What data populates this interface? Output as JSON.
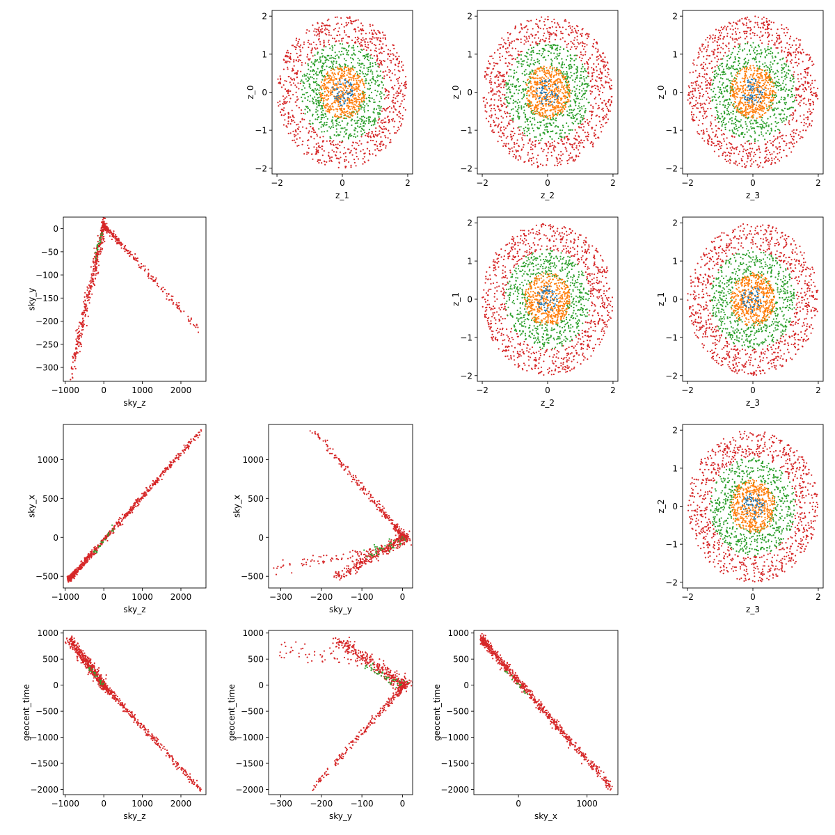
{
  "colors": {
    "blue": "#1f77b4",
    "orange": "#ff7f0e",
    "green": "#2ca02c",
    "red": "#d62728"
  },
  "chart_data": [
    {
      "type": "scatter",
      "kind": "disk",
      "title": "",
      "xlabel": "z_1",
      "ylabel": "z_0",
      "xlim": [
        -2.15,
        2.15
      ],
      "ylim": [
        -2.15,
        2.15
      ],
      "xticks": [
        -2,
        0,
        2
      ],
      "yticks": [
        -2,
        -1,
        0,
        1,
        2
      ],
      "seed": 11,
      "series": [
        {
          "name": "red",
          "radius": [
            1.3,
            2.0
          ],
          "count": 850
        },
        {
          "name": "green",
          "radius": [
            0.6,
            1.3
          ],
          "count": 600
        },
        {
          "name": "orange",
          "radius": [
            0,
            0.7
          ],
          "count": 500
        },
        {
          "name": "blue",
          "radius": [
            0,
            0.35
          ],
          "count": 60
        }
      ]
    },
    {
      "type": "scatter",
      "kind": "disk",
      "title": "",
      "xlabel": "z_2",
      "ylabel": "z_0",
      "xlim": [
        -2.15,
        2.15
      ],
      "ylim": [
        -2.15,
        2.15
      ],
      "xticks": [
        -2,
        0,
        2
      ],
      "yticks": [
        -2,
        -1,
        0,
        1,
        2
      ],
      "seed": 23,
      "series": [
        {
          "name": "red",
          "radius": [
            1.3,
            2.0
          ],
          "count": 850
        },
        {
          "name": "green",
          "radius": [
            0.6,
            1.3
          ],
          "count": 600
        },
        {
          "name": "orange",
          "radius": [
            0,
            0.7
          ],
          "count": 500
        },
        {
          "name": "blue",
          "radius": [
            0,
            0.35
          ],
          "count": 60
        }
      ]
    },
    {
      "type": "scatter",
      "kind": "disk",
      "title": "",
      "xlabel": "z_3",
      "ylabel": "z_0",
      "xlim": [
        -2.15,
        2.15
      ],
      "ylim": [
        -2.15,
        2.15
      ],
      "xticks": [
        -2,
        0,
        2
      ],
      "yticks": [
        -2,
        -1,
        0,
        1,
        2
      ],
      "seed": 37,
      "series": [
        {
          "name": "red",
          "radius": [
            1.3,
            2.0
          ],
          "count": 850
        },
        {
          "name": "green",
          "radius": [
            0.6,
            1.3
          ],
          "count": 600
        },
        {
          "name": "orange",
          "radius": [
            0,
            0.7
          ],
          "count": 500
        },
        {
          "name": "blue",
          "radius": [
            0,
            0.35
          ],
          "count": 60
        }
      ]
    },
    {
      "type": "scatter",
      "kind": "lines",
      "title": "",
      "xlabel": "sky_z",
      "ylabel": "sky_y",
      "xlim": [
        -1050,
        2650
      ],
      "ylim": [
        -330,
        25
      ],
      "xticks": [
        -1000,
        0,
        1000,
        2000
      ],
      "yticks": [
        -300,
        -250,
        -200,
        -150,
        -100,
        -50,
        0
      ],
      "seed": 41,
      "series": [
        {
          "name": "red",
          "segments": [
            {
              "from": [
                0,
                8
              ],
              "to": [
                2500,
                -222
              ],
              "count": 260,
              "jx": 18,
              "jy": 4,
              "pw": 2.6
            },
            {
              "from": [
                0,
                8
              ],
              "to": [
                -850,
                -318
              ],
              "count": 380,
              "jx": 22,
              "jy": 14,
              "pw": 1.4
            }
          ]
        },
        {
          "name": "green",
          "segments": [
            {
              "from": [
                0,
                5
              ],
              "to": [
                -250,
                -70
              ],
              "count": 20,
              "jx": 10,
              "jy": 6,
              "pw": 1.0
            }
          ]
        }
      ]
    },
    {
      "type": "scatter",
      "kind": "disk",
      "title": "",
      "xlabel": "z_2",
      "ylabel": "z_1",
      "xlim": [
        -2.15,
        2.15
      ],
      "ylim": [
        -2.15,
        2.15
      ],
      "xticks": [
        -2,
        0,
        2
      ],
      "yticks": [
        -2,
        -1,
        0,
        1,
        2
      ],
      "seed": 53,
      "series": [
        {
          "name": "red",
          "radius": [
            1.3,
            2.0
          ],
          "count": 850
        },
        {
          "name": "green",
          "radius": [
            0.6,
            1.3
          ],
          "count": 600
        },
        {
          "name": "orange",
          "radius": [
            0,
            0.7
          ],
          "count": 500
        },
        {
          "name": "blue",
          "radius": [
            0,
            0.35
          ],
          "count": 60
        }
      ]
    },
    {
      "type": "scatter",
      "kind": "disk",
      "title": "",
      "xlabel": "z_3",
      "ylabel": "z_1",
      "xlim": [
        -2.15,
        2.15
      ],
      "ylim": [
        -2.15,
        2.15
      ],
      "xticks": [
        -2,
        0,
        2
      ],
      "yticks": [
        -2,
        -1,
        0,
        1,
        2
      ],
      "seed": 67,
      "series": [
        {
          "name": "red",
          "radius": [
            1.3,
            2.0
          ],
          "count": 850
        },
        {
          "name": "green",
          "radius": [
            0.6,
            1.3
          ],
          "count": 600
        },
        {
          "name": "orange",
          "radius": [
            0,
            0.7
          ],
          "count": 500
        },
        {
          "name": "blue",
          "radius": [
            0,
            0.35
          ],
          "count": 60
        }
      ]
    },
    {
      "type": "scatter",
      "kind": "lines",
      "title": "",
      "xlabel": "sky_z",
      "ylabel": "sky_x",
      "xlim": [
        -1050,
        2650
      ],
      "ylim": [
        -650,
        1450
      ],
      "xticks": [
        -1000,
        0,
        1000,
        2000
      ],
      "yticks": [
        -500,
        0,
        500,
        1000
      ],
      "seed": 71,
      "series": [
        {
          "name": "red",
          "segments": [
            {
              "from": [
                -900,
                -540
              ],
              "to": [
                2500,
                1360
              ],
              "count": 700,
              "jx": 25,
              "jy": 18,
              "pw": 2.0
            }
          ]
        },
        {
          "name": "green",
          "segments": [
            {
              "from": [
                -300,
                -230
              ],
              "to": [
                300,
                150
              ],
              "count": 20,
              "jx": 15,
              "jy": 15,
              "pw": 1.0
            }
          ]
        }
      ]
    },
    {
      "type": "scatter",
      "kind": "lines",
      "title": "",
      "xlabel": "sky_y",
      "ylabel": "sky_x",
      "xlim": [
        -330,
        25
      ],
      "ylim": [
        -650,
        1450
      ],
      "xticks": [
        -300,
        -200,
        -100,
        0
      ],
      "yticks": [
        -500,
        0,
        500,
        1000
      ],
      "seed": 83,
      "series": [
        {
          "name": "red",
          "segments": [
            {
              "from": [
                5,
                0
              ],
              "to": [
                -220,
                1380
              ],
              "count": 300,
              "jx": 4,
              "jy": 18,
              "pw": 2.5
            },
            {
              "from": [
                5,
                0
              ],
              "to": [
                -160,
                -510
              ],
              "count": 320,
              "jx": 10,
              "jy": 30,
              "pw": 1.5
            },
            {
              "from": [
                -40,
                -150
              ],
              "to": [
                -310,
                -400
              ],
              "count": 70,
              "jx": 8,
              "jy": 40,
              "pw": 1.0
            }
          ]
        },
        {
          "name": "green",
          "segments": [
            {
              "from": [
                0,
                0
              ],
              "to": [
                -90,
                -250
              ],
              "count": 40,
              "jx": 8,
              "jy": 25,
              "pw": 1.0
            }
          ]
        }
      ]
    },
    {
      "type": "scatter",
      "kind": "disk",
      "title": "",
      "xlabel": "z_3",
      "ylabel": "z_2",
      "xlim": [
        -2.15,
        2.15
      ],
      "ylim": [
        -2.15,
        2.15
      ],
      "xticks": [
        -2,
        0,
        2
      ],
      "yticks": [
        -2,
        -1,
        0,
        1,
        2
      ],
      "seed": 97,
      "series": [
        {
          "name": "red",
          "radius": [
            1.3,
            2.0
          ],
          "count": 850
        },
        {
          "name": "green",
          "radius": [
            0.6,
            1.3
          ],
          "count": 600
        },
        {
          "name": "orange",
          "radius": [
            0,
            0.7
          ],
          "count": 500
        },
        {
          "name": "blue",
          "radius": [
            0,
            0.35
          ],
          "count": 60
        }
      ]
    },
    {
      "type": "scatter",
      "kind": "lines",
      "title": "",
      "xlabel": "sky_z",
      "ylabel": "geocent_time",
      "xlim": [
        -1050,
        2650
      ],
      "ylim": [
        -2100,
        1050
      ],
      "xticks": [
        -1000,
        0,
        1000,
        2000
      ],
      "yticks": [
        -2000,
        -1500,
        -1000,
        -500,
        0,
        500,
        1000
      ],
      "seed": 101,
      "series": [
        {
          "name": "red",
          "segments": [
            {
              "from": [
                0,
                0
              ],
              "to": [
                -900,
                890
              ],
              "count": 450,
              "jx": 60,
              "jy": 40,
              "pw": 1.3
            },
            {
              "from": [
                0,
                0
              ],
              "to": [
                2500,
                -2000
              ],
              "count": 350,
              "jx": 30,
              "jy": 30,
              "pw": 2.0
            }
          ]
        },
        {
          "name": "green",
          "segments": [
            {
              "from": [
                0,
                0
              ],
              "to": [
                -400,
                350
              ],
              "count": 20,
              "jx": 20,
              "jy": 20,
              "pw": 1.0
            }
          ]
        }
      ]
    },
    {
      "type": "scatter",
      "kind": "lines",
      "title": "",
      "xlabel": "sky_y",
      "ylabel": "geocent_time",
      "xlim": [
        -330,
        25
      ],
      "ylim": [
        -2100,
        1050
      ],
      "xticks": [
        -300,
        -200,
        -100,
        0
      ],
      "yticks": [
        -2000,
        -1500,
        -1000,
        -500,
        0,
        500,
        1000
      ],
      "seed": 113,
      "series": [
        {
          "name": "red",
          "segments": [
            {
              "from": [
                5,
                0
              ],
              "to": [
                -160,
                880
              ],
              "count": 330,
              "jx": 12,
              "jy": 40,
              "pw": 1.5
            },
            {
              "from": [
                5,
                0
              ],
              "to": [
                -220,
                -1980
              ],
              "count": 280,
              "jx": 4,
              "jy": 25,
              "pw": 2.5
            },
            {
              "from": [
                -100,
                500
              ],
              "to": [
                -310,
                700
              ],
              "count": 60,
              "jx": 6,
              "jy": 90,
              "pw": 1.0
            }
          ]
        },
        {
          "name": "green",
          "segments": [
            {
              "from": [
                0,
                0
              ],
              "to": [
                -100,
                400
              ],
              "count": 40,
              "jx": 8,
              "jy": 30,
              "pw": 1.0
            }
          ]
        }
      ]
    },
    {
      "type": "scatter",
      "kind": "lines",
      "title": "",
      "xlabel": "sky_x",
      "ylabel": "geocent_time",
      "xlim": [
        -650,
        1450
      ],
      "ylim": [
        -2100,
        1050
      ],
      "xticks": [
        0,
        1000
      ],
      "yticks": [
        -2000,
        -1500,
        -1000,
        -500,
        0,
        500,
        1000
      ],
      "seed": 127,
      "series": [
        {
          "name": "red",
          "segments": [
            {
              "from": [
                -530,
                880
              ],
              "to": [
                1360,
                -1980
              ],
              "count": 750,
              "jx": 20,
              "jy": 40,
              "pw": 1.6
            }
          ]
        },
        {
          "name": "green",
          "segments": [
            {
              "from": [
                -200,
                300
              ],
              "to": [
                200,
                -300
              ],
              "count": 15,
              "jx": 10,
              "jy": 15,
              "pw": 1.0
            }
          ]
        }
      ]
    }
  ]
}
